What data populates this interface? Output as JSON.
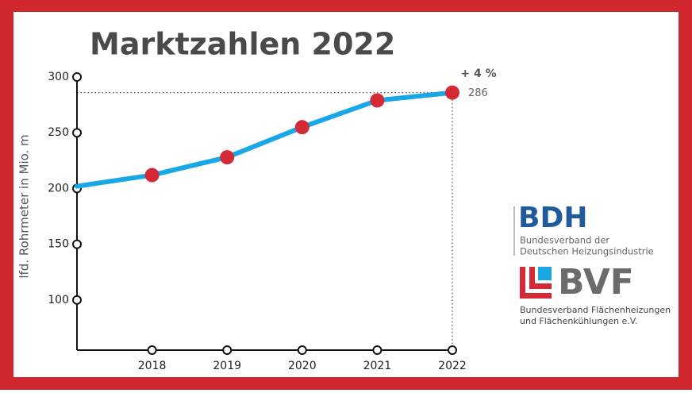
{
  "chart_data": {
    "type": "line",
    "title": "Marktzahlen 2022",
    "y_label": "lfd. Rohrmeter in Mio. m",
    "categories": [
      null,
      "2018",
      "2019",
      "2020",
      "2021",
      "2022"
    ],
    "values": [
      202,
      212,
      228,
      255,
      279,
      286
    ],
    "line_color": "#1aa7e8",
    "marker_color": "#d42a36",
    "ylim": [
      55,
      300
    ],
    "yticks": [
      100,
      150,
      200,
      250,
      300
    ],
    "annotation": "+ 4 %"
  },
  "logos": [
    {
      "name": "BDH",
      "lines": [
        "Bundesverband der",
        "Deutschen Heizungsindustrie"
      ]
    },
    {
      "name": "BVF",
      "lines": [
        "Bundesverband Flächenheizungen",
        "und Flächenkühlungen e.V."
      ]
    }
  ]
}
